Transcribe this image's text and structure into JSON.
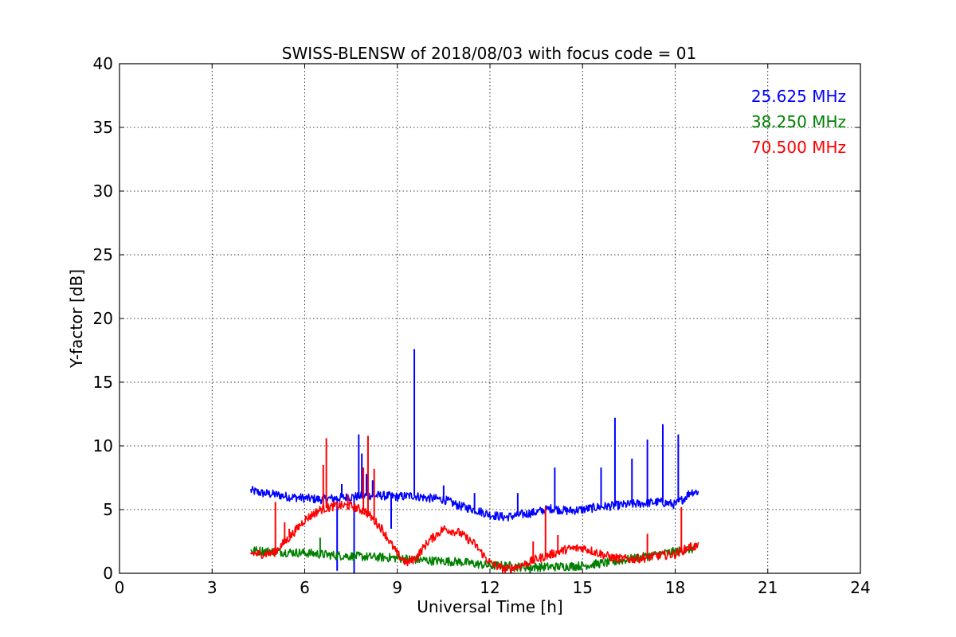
{
  "chart_data": {
    "type": "line",
    "title": "SWISS-BLENSW of 2018/08/03 with focus code = 01",
    "xlabel": "Universal Time [h]",
    "ylabel": "Y-factor [dB]",
    "xlim": [
      0,
      24
    ],
    "ylim": [
      0,
      40
    ],
    "xticks": [
      0,
      3,
      6,
      9,
      12,
      15,
      18,
      21,
      24
    ],
    "yticks": [
      0,
      5,
      10,
      15,
      20,
      25,
      30,
      35,
      40
    ],
    "xtick_labels": [
      "0",
      "3",
      "6",
      "9",
      "12",
      "15",
      "18",
      "21",
      "24"
    ],
    "ytick_labels": [
      "0",
      "5",
      "10",
      "15",
      "20",
      "25",
      "30",
      "35",
      "40"
    ],
    "grid": true,
    "legend_position": "top-right",
    "series": [
      {
        "name": "25.625 MHz",
        "color": "#0000ff",
        "x": [
          4.25,
          4.6,
          5.0,
          5.5,
          6.0,
          6.5,
          7.0,
          7.5,
          8.0,
          8.5,
          9.0,
          9.5,
          10.0,
          10.5,
          11.0,
          11.5,
          12.0,
          12.5,
          13.0,
          13.5,
          14.0,
          14.5,
          15.0,
          15.5,
          16.0,
          16.5,
          17.0,
          17.5,
          18.0,
          18.3,
          18.5,
          18.75
        ],
        "y": [
          6.5,
          6.3,
          6.2,
          6.0,
          5.9,
          5.8,
          5.9,
          6.0,
          6.1,
          6.1,
          6.0,
          6.1,
          5.9,
          5.8,
          5.3,
          5.0,
          4.6,
          4.4,
          4.6,
          4.8,
          5.1,
          4.9,
          5.0,
          5.2,
          5.3,
          5.4,
          5.5,
          5.6,
          5.4,
          5.9,
          6.4,
          6.4
        ],
        "spikes": [
          {
            "x": 7.05,
            "y": 0.2
          },
          {
            "x": 7.2,
            "y": 7.0
          },
          {
            "x": 7.6,
            "y": 0.0
          },
          {
            "x": 7.75,
            "y": 10.9
          },
          {
            "x": 7.85,
            "y": 9.4
          },
          {
            "x": 8.0,
            "y": 7.8
          },
          {
            "x": 8.2,
            "y": 7.3
          },
          {
            "x": 8.8,
            "y": 3.5
          },
          {
            "x": 9.55,
            "y": 17.6
          },
          {
            "x": 10.5,
            "y": 6.9
          },
          {
            "x": 11.5,
            "y": 6.3
          },
          {
            "x": 12.9,
            "y": 6.3
          },
          {
            "x": 14.1,
            "y": 8.3
          },
          {
            "x": 15.6,
            "y": 8.3
          },
          {
            "x": 16.05,
            "y": 12.2
          },
          {
            "x": 16.6,
            "y": 9.0
          },
          {
            "x": 17.1,
            "y": 10.5
          },
          {
            "x": 17.6,
            "y": 11.7
          },
          {
            "x": 18.1,
            "y": 10.9
          }
        ]
      },
      {
        "name": "38.250 MHz",
        "color": "#008000",
        "x": [
          4.25,
          5.0,
          6.0,
          7.0,
          8.0,
          9.0,
          10.0,
          11.0,
          12.0,
          12.5,
          13.0,
          13.5,
          14.0,
          15.0,
          16.0,
          17.0,
          17.5,
          18.0,
          18.5,
          18.75
        ],
        "y": [
          1.8,
          1.7,
          1.6,
          1.4,
          1.3,
          1.2,
          1.0,
          0.9,
          0.6,
          0.6,
          0.5,
          0.5,
          0.5,
          0.6,
          0.9,
          1.3,
          1.5,
          1.7,
          1.9,
          2.0
        ],
        "spikes": [
          {
            "x": 6.5,
            "y": 2.8
          },
          {
            "x": 13.3,
            "y": 0.0
          }
        ]
      },
      {
        "name": "70.500 MHz",
        "color": "#ff0000",
        "x": [
          4.25,
          4.5,
          5.0,
          5.5,
          6.0,
          6.5,
          7.0,
          7.5,
          8.0,
          8.5,
          9.0,
          9.3,
          9.6,
          10.0,
          10.5,
          11.0,
          11.5,
          12.0,
          12.5,
          13.0,
          13.5,
          14.0,
          14.5,
          15.0,
          15.5,
          16.0,
          16.5,
          17.0,
          17.5,
          18.0,
          18.5,
          18.75
        ],
        "y": [
          1.6,
          1.5,
          1.6,
          2.8,
          4.2,
          5.0,
          5.3,
          5.3,
          4.8,
          3.5,
          1.5,
          0.8,
          1.2,
          2.5,
          3.5,
          3.2,
          2.3,
          0.8,
          0.3,
          0.6,
          1.1,
          1.5,
          1.9,
          2.0,
          1.6,
          1.2,
          1.1,
          1.2,
          1.4,
          1.5,
          2.1,
          2.1
        ],
        "spikes": [
          {
            "x": 5.05,
            "y": 5.6
          },
          {
            "x": 5.35,
            "y": 4.0
          },
          {
            "x": 5.5,
            "y": 3.5
          },
          {
            "x": 6.6,
            "y": 8.5
          },
          {
            "x": 6.7,
            "y": 10.6
          },
          {
            "x": 7.4,
            "y": 6.2
          },
          {
            "x": 7.9,
            "y": 8.3
          },
          {
            "x": 8.05,
            "y": 10.8
          },
          {
            "x": 8.25,
            "y": 8.2
          },
          {
            "x": 13.4,
            "y": 2.5
          },
          {
            "x": 13.8,
            "y": 5.2
          },
          {
            "x": 14.2,
            "y": 3.0
          },
          {
            "x": 17.1,
            "y": 3.1
          },
          {
            "x": 18.2,
            "y": 5.2
          }
        ]
      }
    ]
  }
}
